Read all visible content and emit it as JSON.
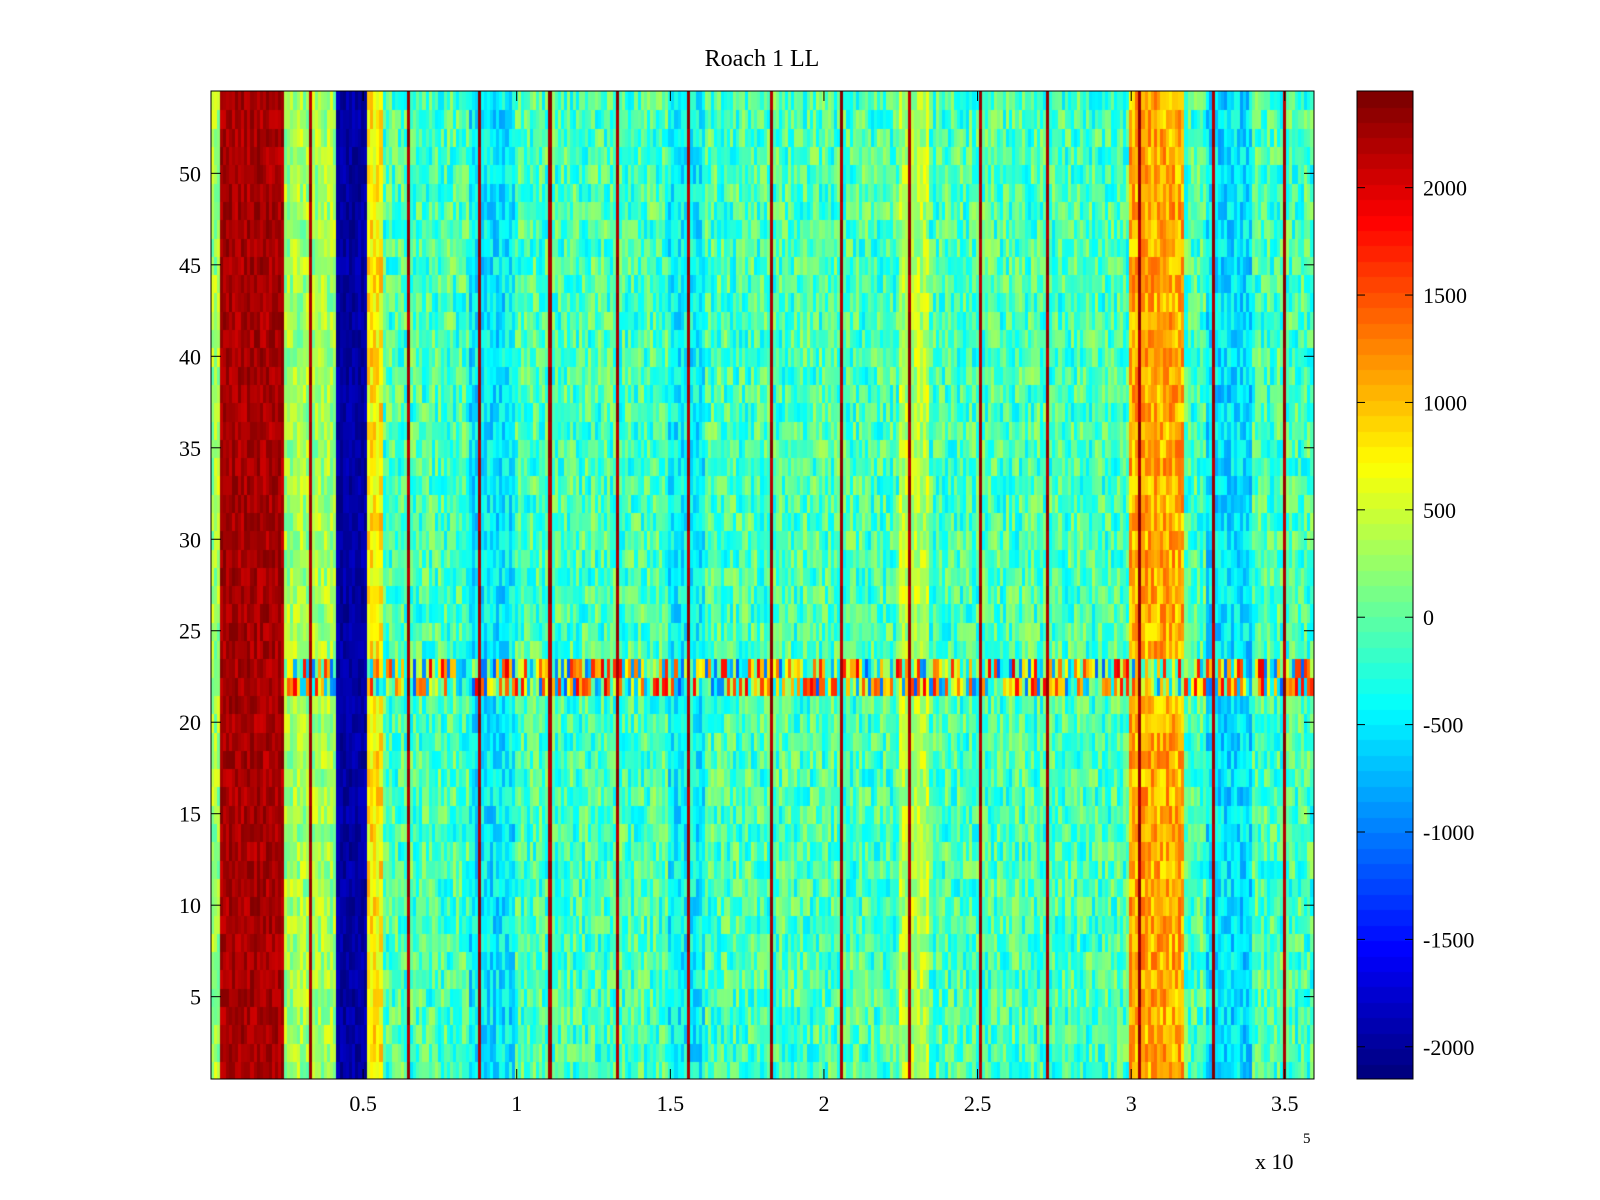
{
  "chart_data": {
    "type": "heatmap",
    "title": "Roach 1 LL",
    "xlabel": "",
    "ylabel": "",
    "x_exponent_label": "x 10",
    "x_exponent_power": "5",
    "xlim": [
      0.5,
      359.5
    ],
    "ylim": [
      0.5,
      54.5
    ],
    "x_ticks": [
      50,
      100,
      150,
      200,
      250,
      300,
      350
    ],
    "x_tick_labels": [
      "0.5",
      "1",
      "1.5",
      "2",
      "2.5",
      "3",
      "3.5"
    ],
    "y_ticks": [
      5,
      10,
      15,
      20,
      25,
      30,
      35,
      40,
      45,
      50
    ],
    "y_tick_labels": [
      "5",
      "10",
      "15",
      "20",
      "25",
      "30",
      "35",
      "40",
      "45",
      "50"
    ],
    "colormap": "jet",
    "clim": [
      -2150,
      2450
    ],
    "colorbar_ticks": [
      2000,
      1500,
      1000,
      500,
      0,
      -500,
      -1000,
      -1500,
      -2000
    ],
    "colorbar_tick_labels": [
      "2000",
      "1500",
      "1000",
      "500",
      "0",
      "-500",
      "-1000",
      "-1500",
      "-2000"
    ],
    "x_units_note": "x values in units of 10^3 (axis multiplier x 10^5)",
    "background_level": -100,
    "column_regions": [
      {
        "x_start": 0.5,
        "x_end": 4,
        "value": 300
      },
      {
        "x_start": 4,
        "x_end": 25,
        "value": 2450
      },
      {
        "x_start": 25,
        "x_end": 42,
        "value": 300
      },
      {
        "x_start": 42,
        "x_end": 52,
        "value": -2150
      },
      {
        "x_start": 52,
        "x_end": 57,
        "value": 800
      },
      {
        "x_start": 85,
        "x_end": 100,
        "value": -500
      },
      {
        "x_start": 150,
        "x_end": 162,
        "value": -450
      },
      {
        "x_start": 225,
        "x_end": 235,
        "value": 400
      },
      {
        "x_start": 300,
        "x_end": 318,
        "value": 1100
      },
      {
        "x_start": 325,
        "x_end": 340,
        "value": -550
      }
    ],
    "stripe_columns": [
      33,
      65,
      88,
      111,
      133,
      156,
      183,
      206,
      228,
      251,
      273,
      303,
      327,
      350
    ],
    "stripe_value": 2450,
    "row_band": {
      "y_start": 21.5,
      "y_end": 23.5,
      "low": -1200,
      "high": 2000
    }
  }
}
